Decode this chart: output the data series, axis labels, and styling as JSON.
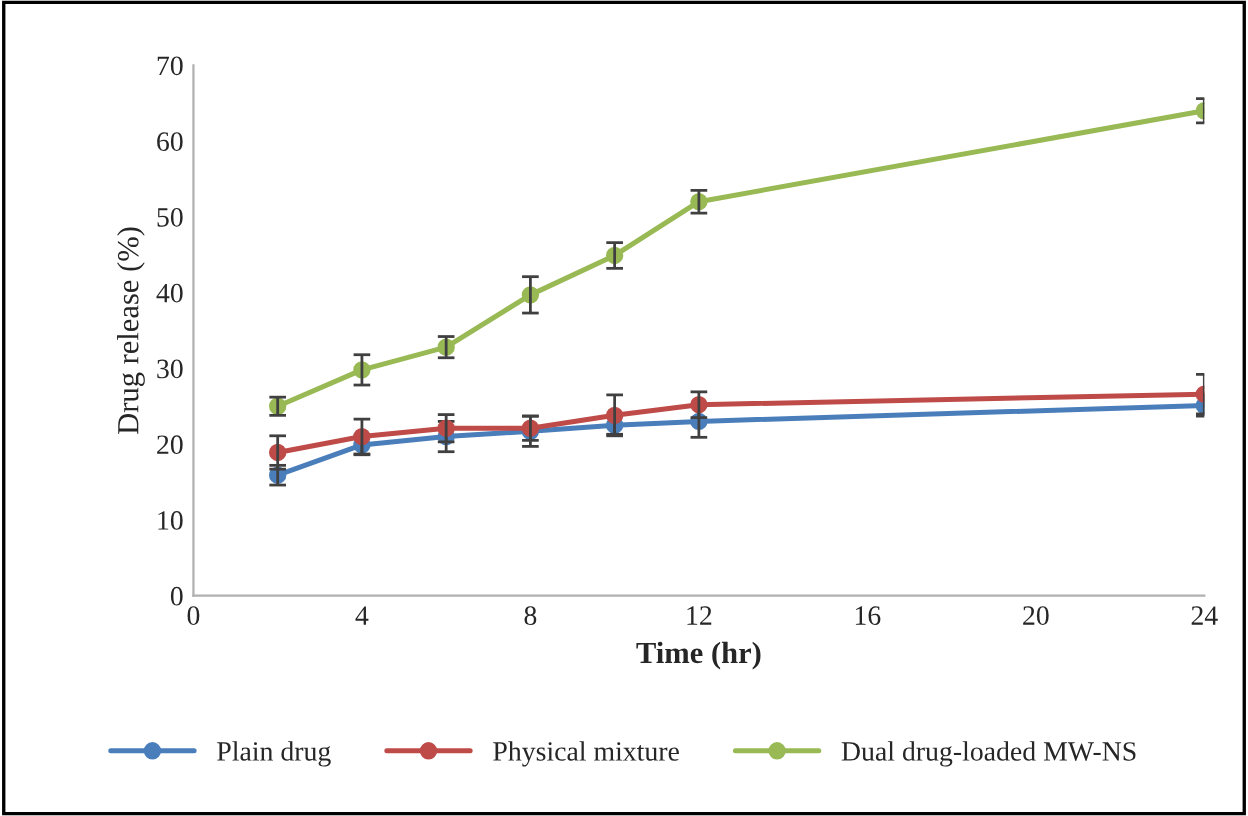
{
  "chart_data": {
    "type": "line",
    "xlabel": "Time (hr)",
    "ylabel": "Drug release (%)",
    "x": [
      2,
      4,
      6,
      8,
      10,
      12,
      24
    ],
    "xlim": [
      0,
      24
    ],
    "xticks": [
      0,
      4,
      8,
      12,
      16,
      20,
      24
    ],
    "ylim": [
      0,
      70
    ],
    "yticks": [
      0,
      10,
      20,
      30,
      40,
      50,
      60,
      70
    ],
    "grid": false,
    "legend": "bottom",
    "marker": "circle",
    "line_style": "solid",
    "series": [
      {
        "name": "Plain drug",
        "color": "#4a7ebb",
        "values": [
          15.9,
          19.9,
          21.0,
          21.7,
          22.5,
          23.0,
          25.1
        ],
        "errors": [
          1.3,
          1.3,
          2.0,
          2.0,
          1.2,
          2.1,
          1.4
        ]
      },
      {
        "name": "Physical mixture",
        "color": "#be4b48",
        "values": [
          18.9,
          21.0,
          22.1,
          22.1,
          23.8,
          25.2,
          26.6
        ],
        "errors": [
          2.2,
          2.3,
          1.8,
          1.6,
          2.7,
          1.7,
          2.6
        ]
      },
      {
        "name": "Dual drug-loaded MW-NS",
        "color": "#98b954",
        "values": [
          25.0,
          29.8,
          32.8,
          39.7,
          44.9,
          52.0,
          64.0
        ],
        "errors": [
          1.2,
          2.0,
          1.4,
          2.4,
          1.7,
          1.5,
          1.6
        ]
      }
    ]
  }
}
